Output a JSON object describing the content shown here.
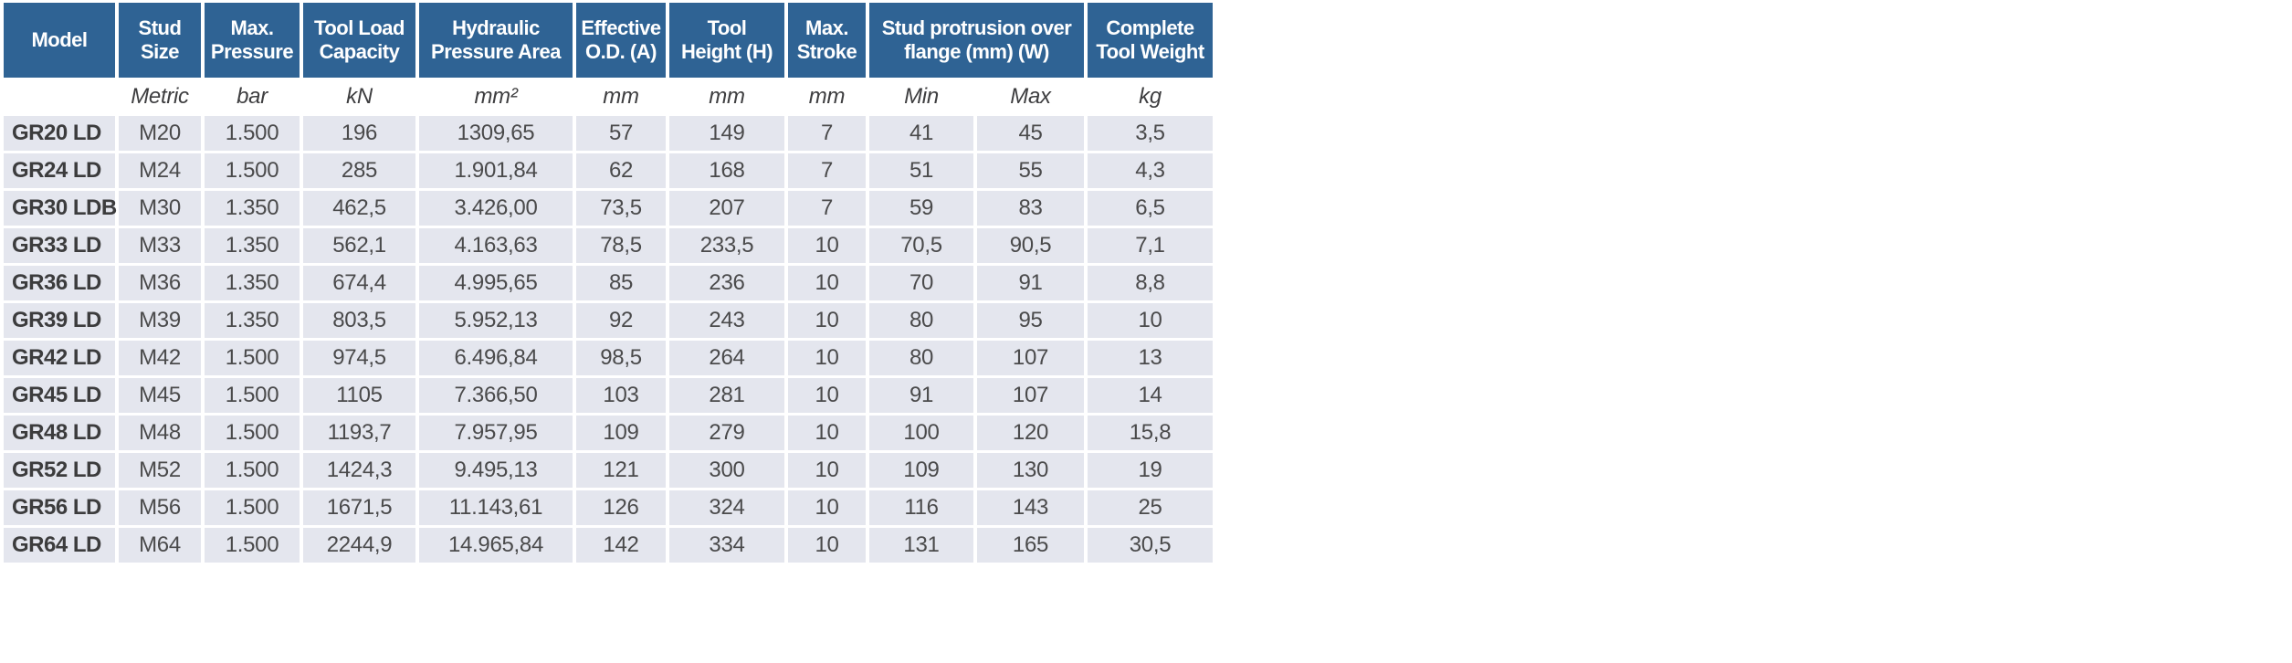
{
  "colors": {
    "header_bg": "#2f6394",
    "row_bg": "#e4e6ee",
    "page_bg": "#ffffff"
  },
  "table": {
    "header": {
      "model": "Model",
      "stud_size": "Stud\nSize",
      "max_pressure": "Max.\nPressure",
      "tool_load_capacity": "Tool Load\nCapacity",
      "hydraulic_pressure_area": "Hydraulic\nPressure Area",
      "effective_od": "Effective\nO.D. (A)",
      "tool_height": "Tool\nHeight (H)",
      "max_stroke": "Max.\nStroke",
      "stud_protrusion": "Stud protrusion over\nflange (mm) (W)",
      "complete_tool_weight": "Complete\nTool Weight"
    },
    "units": [
      "",
      "Metric",
      "bar",
      "kN",
      "mm²",
      "mm",
      "mm",
      "mm",
      "Min",
      "Max",
      "kg"
    ],
    "rows": [
      [
        "GR20 LD",
        "M20",
        "1.500",
        "196",
        "1309,65",
        "57",
        "149",
        "7",
        "41",
        "45",
        "3,5"
      ],
      [
        "GR24 LD",
        "M24",
        "1.500",
        "285",
        "1.901,84",
        "62",
        "168",
        "7",
        "51",
        "55",
        "4,3"
      ],
      [
        "GR30 LDB",
        "M30",
        "1.350",
        "462,5",
        "3.426,00",
        "73,5",
        "207",
        "7",
        "59",
        "83",
        "6,5"
      ],
      [
        "GR33 LD",
        "M33",
        "1.350",
        "562,1",
        "4.163,63",
        "78,5",
        "233,5",
        "10",
        "70,5",
        "90,5",
        "7,1"
      ],
      [
        "GR36 LD",
        "M36",
        "1.350",
        "674,4",
        "4.995,65",
        "85",
        "236",
        "10",
        "70",
        "91",
        "8,8"
      ],
      [
        "GR39 LD",
        "M39",
        "1.350",
        "803,5",
        "5.952,13",
        "92",
        "243",
        "10",
        "80",
        "95",
        "10"
      ],
      [
        "GR42 LD",
        "M42",
        "1.500",
        "974,5",
        "6.496,84",
        "98,5",
        "264",
        "10",
        "80",
        "107",
        "13"
      ],
      [
        "GR45 LD",
        "M45",
        "1.500",
        "1105",
        "7.366,50",
        "103",
        "281",
        "10",
        "91",
        "107",
        "14"
      ],
      [
        "GR48 LD",
        "M48",
        "1.500",
        "1193,7",
        "7.957,95",
        "109",
        "279",
        "10",
        "100",
        "120",
        "15,8"
      ],
      [
        "GR52 LD",
        "M52",
        "1.500",
        "1424,3",
        "9.495,13",
        "121",
        "300",
        "10",
        "109",
        "130",
        "19"
      ],
      [
        "GR56 LD",
        "M56",
        "1.500",
        "1671,5",
        "11.143,61",
        "126",
        "324",
        "10",
        "116",
        "143",
        "25"
      ],
      [
        "GR64 LD",
        "M64",
        "1.500",
        "2244,9",
        "14.965,84",
        "142",
        "334",
        "10",
        "131",
        "165",
        "30,5"
      ]
    ]
  }
}
